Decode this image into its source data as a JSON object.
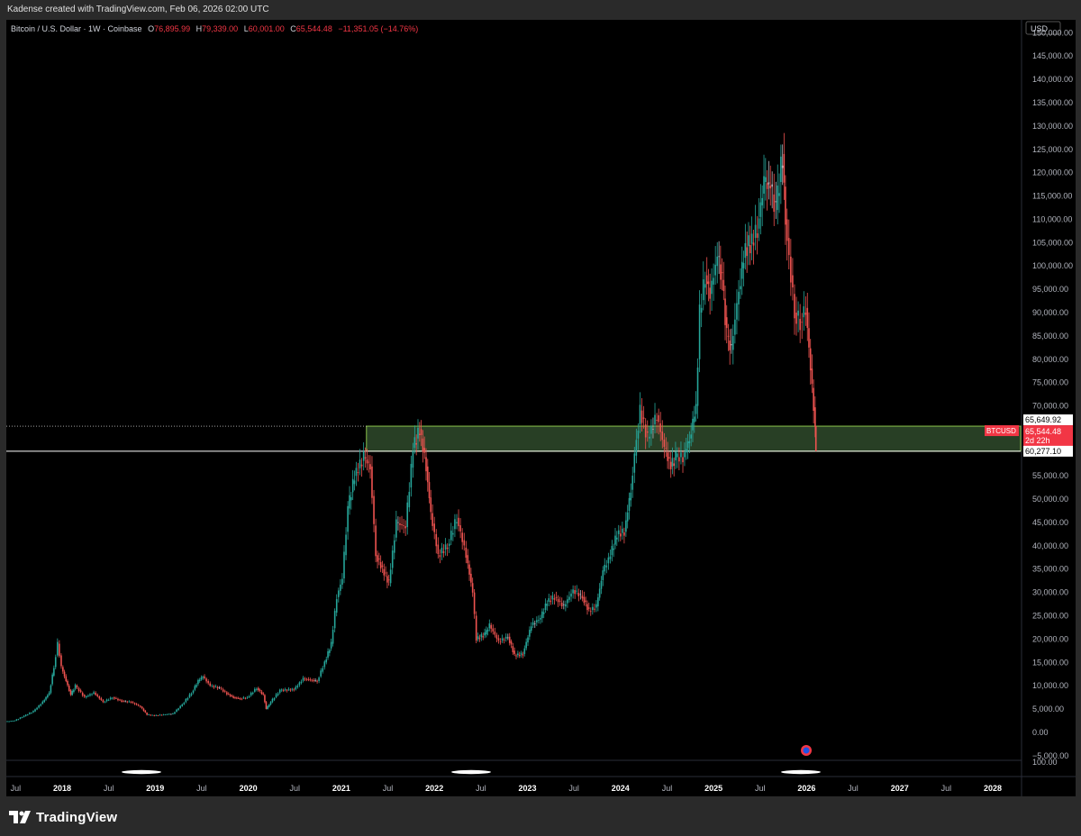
{
  "header": {
    "attribution": "Kadense created with TradingView.com, Feb 06, 2026 02:00 UTC"
  },
  "legend": {
    "symbol": "Bitcoin / U.S. Dollar · 1W · Coinbase",
    "o_label": "O",
    "o_value": "76,895.99",
    "h_label": "H",
    "h_value": "79,339.00",
    "l_label": "L",
    "l_value": "60,001.00",
    "c_label": "C",
    "c_value": "65,544.48",
    "change": "−11,351.05 (−14.76%)"
  },
  "brand": {
    "name": "TradingView"
  },
  "chart_data": {
    "type": "line",
    "currency": "USD",
    "ylim": [
      -6000,
      152000
    ],
    "y_ticks": [
      150000,
      145000,
      140000,
      135000,
      130000,
      125000,
      120000,
      115000,
      110000,
      105000,
      100000,
      95000,
      90000,
      85000,
      80000,
      75000,
      70000,
      55000,
      50000,
      45000,
      40000,
      35000,
      30000,
      25000,
      20000,
      15000,
      10000,
      5000,
      0,
      -5000
    ],
    "y_tick_labels": [
      "150,000.00",
      "145,000.00",
      "140,000.00",
      "135,000.00",
      "130,000.00",
      "125,000.00",
      "120,000.00",
      "115,000.00",
      "110,000.00",
      "105,000.00",
      "100,000.00",
      "95,000.00",
      "90,000.00",
      "85,000.00",
      "80,000.00",
      "75,000.00",
      "70,000.00",
      "55,000.00",
      "50,000.00",
      "45,000.00",
      "40,000.00",
      "35,000.00",
      "30,000.00",
      "25,000.00",
      "20,000.00",
      "15,000.00",
      "10,000.00",
      "5,000.00",
      "0.00",
      "−5,000.00"
    ],
    "bottom_pane_label": "100.00",
    "x_range": [
      2017.4,
      2028.3
    ],
    "x_ticks": [
      2017.5,
      2018,
      2018.5,
      2019,
      2019.5,
      2020,
      2020.5,
      2021,
      2021.5,
      2022,
      2022.5,
      2023,
      2023.5,
      2024,
      2024.5,
      2025,
      2025.5,
      2026,
      2026.5,
      2027,
      2027.5,
      2028
    ],
    "x_tick_labels": [
      "Jul",
      "2018",
      "Jul",
      "2019",
      "Jul",
      "2020",
      "Jul",
      "2021",
      "Jul",
      "2022",
      "Jul",
      "2023",
      "Jul",
      "2024",
      "Jul",
      "2025",
      "Jul",
      "2026",
      "Jul",
      "2027",
      "Jul",
      "2028"
    ],
    "zone": {
      "top": 65649.92,
      "bottom": 60277.1,
      "top_label": "65,649.92",
      "bottom_label": "60,277.10",
      "from_x": 2021.27,
      "color": "#2f4a2c"
    },
    "ref_line_top_start": 2017.4,
    "current": {
      "symbol": "BTCUSD",
      "price_label": "65,544.48",
      "countdown": "2d 22h"
    },
    "colors": {
      "up": "#26a69a",
      "down": "#ef5350",
      "neutral": "#b2b5be",
      "zone_border": "#8bc34a",
      "price_badge": "#f23645"
    },
    "series": [
      {
        "values": [
          [
            2017.4,
            2300
          ],
          [
            2017.5,
            2500
          ],
          [
            2017.6,
            3500
          ],
          [
            2017.7,
            4500
          ],
          [
            2017.8,
            6500
          ],
          [
            2017.87,
            8500
          ],
          [
            2017.92,
            14000
          ],
          [
            2017.96,
            19000
          ],
          [
            2018.0,
            14000
          ],
          [
            2018.05,
            11000
          ],
          [
            2018.1,
            8000
          ],
          [
            2018.15,
            10000
          ],
          [
            2018.25,
            7500
          ],
          [
            2018.35,
            8500
          ],
          [
            2018.45,
            6500
          ],
          [
            2018.55,
            7500
          ],
          [
            2018.65,
            6700
          ],
          [
            2018.75,
            6500
          ],
          [
            2018.85,
            5500
          ],
          [
            2018.92,
            3800
          ],
          [
            2019.0,
            3600
          ],
          [
            2019.1,
            3800
          ],
          [
            2019.2,
            4000
          ],
          [
            2019.3,
            6000
          ],
          [
            2019.4,
            8500
          ],
          [
            2019.47,
            11000
          ],
          [
            2019.52,
            12000
          ],
          [
            2019.6,
            10000
          ],
          [
            2019.7,
            9500
          ],
          [
            2019.78,
            8300
          ],
          [
            2019.85,
            7500
          ],
          [
            2019.92,
            7200
          ],
          [
            2020.0,
            7500
          ],
          [
            2020.1,
            9500
          ],
          [
            2020.17,
            8000
          ],
          [
            2020.2,
            5000
          ],
          [
            2020.25,
            6500
          ],
          [
            2020.35,
            9000
          ],
          [
            2020.5,
            9200
          ],
          [
            2020.6,
            11500
          ],
          [
            2020.75,
            11000
          ],
          [
            2020.83,
            15000
          ],
          [
            2020.9,
            19000
          ],
          [
            2020.96,
            29000
          ],
          [
            2021.02,
            33000
          ],
          [
            2021.08,
            48000
          ],
          [
            2021.15,
            55000
          ],
          [
            2021.25,
            59000
          ],
          [
            2021.32,
            57000
          ],
          [
            2021.38,
            38000
          ],
          [
            2021.45,
            35000
          ],
          [
            2021.52,
            32000
          ],
          [
            2021.6,
            45000
          ],
          [
            2021.7,
            44000
          ],
          [
            2021.78,
            61000
          ],
          [
            2021.85,
            65000
          ],
          [
            2021.92,
            57000
          ],
          [
            2021.97,
            47000
          ],
          [
            2022.05,
            38000
          ],
          [
            2022.15,
            40000
          ],
          [
            2022.25,
            46000
          ],
          [
            2022.35,
            38000
          ],
          [
            2022.42,
            30000
          ],
          [
            2022.46,
            20000
          ],
          [
            2022.55,
            21000
          ],
          [
            2022.6,
            23000
          ],
          [
            2022.7,
            19500
          ],
          [
            2022.8,
            20500
          ],
          [
            2022.87,
            16500
          ],
          [
            2022.96,
            16800
          ],
          [
            2023.05,
            23000
          ],
          [
            2023.15,
            24500
          ],
          [
            2023.22,
            28000
          ],
          [
            2023.3,
            29000
          ],
          [
            2023.4,
            27000
          ],
          [
            2023.5,
            30500
          ],
          [
            2023.6,
            29000
          ],
          [
            2023.67,
            26000
          ],
          [
            2023.75,
            27000
          ],
          [
            2023.82,
            34500
          ],
          [
            2023.9,
            38000
          ],
          [
            2023.97,
            42500
          ],
          [
            2024.05,
            43000
          ],
          [
            2024.12,
            52000
          ],
          [
            2024.18,
            63000
          ],
          [
            2024.22,
            69000
          ],
          [
            2024.3,
            63000
          ],
          [
            2024.4,
            68000
          ],
          [
            2024.48,
            61000
          ],
          [
            2024.55,
            57000
          ],
          [
            2024.6,
            59000
          ],
          [
            2024.68,
            59000
          ],
          [
            2024.75,
            63000
          ],
          [
            2024.82,
            70000
          ],
          [
            2024.86,
            90000
          ],
          [
            2024.92,
            98000
          ],
          [
            2024.97,
            94000
          ],
          [
            2025.05,
            102000
          ],
          [
            2025.1,
            97000
          ],
          [
            2025.15,
            85000
          ],
          [
            2025.2,
            82000
          ],
          [
            2025.28,
            95000
          ],
          [
            2025.35,
            104000
          ],
          [
            2025.42,
            105000
          ],
          [
            2025.48,
            108000
          ],
          [
            2025.55,
            118000
          ],
          [
            2025.62,
            117000
          ],
          [
            2025.68,
            112000
          ],
          [
            2025.75,
            124000
          ],
          [
            2025.78,
            110000
          ],
          [
            2025.82,
            102000
          ],
          [
            2025.88,
            90000
          ],
          [
            2025.94,
            88000
          ],
          [
            2026.0,
            91000
          ],
          [
            2026.05,
            78000
          ],
          [
            2026.1,
            65544
          ]
        ]
      }
    ]
  }
}
